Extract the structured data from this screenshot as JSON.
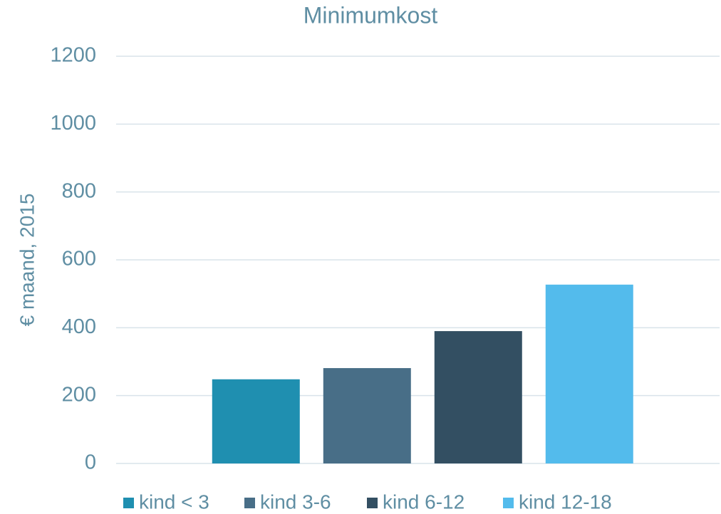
{
  "chart_data": {
    "type": "bar",
    "title": "Minimumkost",
    "y_label": "€ maand, 2015",
    "categories": [
      null
    ],
    "series": [
      {
        "name": "kind < 3",
        "color": "#1f8fb0",
        "values": [
          248
        ]
      },
      {
        "name": "kind 3-6",
        "color": "#486e87",
        "values": [
          281
        ]
      },
      {
        "name": "kind 6-12",
        "color": "#334f62",
        "values": [
          390
        ]
      },
      {
        "name": "kind 12-18",
        "color": "#53bbec",
        "values": [
          527
        ]
      }
    ],
    "ylim": [
      0,
      1200
    ],
    "yticks": [
      0,
      200,
      400,
      600,
      800,
      1000,
      1200
    ],
    "grid": true,
    "legend": "bottom"
  }
}
